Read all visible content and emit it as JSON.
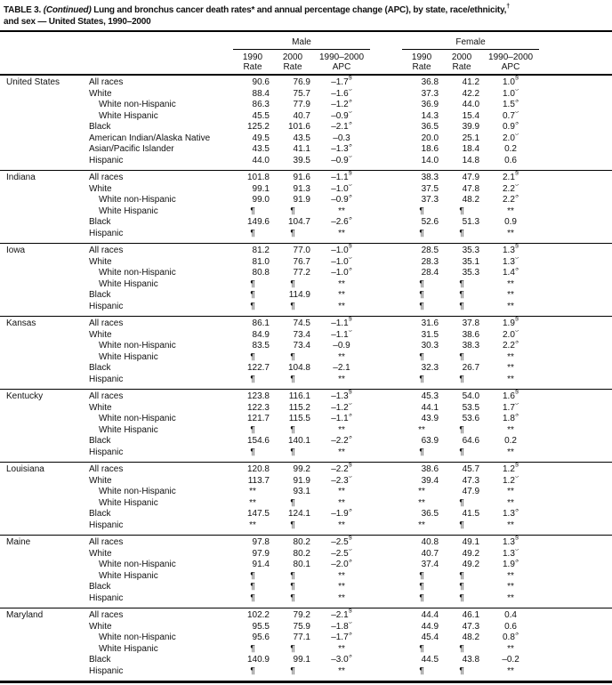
{
  "title": {
    "table_label": "TABLE 3.",
    "continued": "(Continued)",
    "main": "Lung and bronchus cancer death rates* and annual percentage change (APC), by state, race/ethnicity,",
    "dagger": "†",
    "line2": "and sex — United States, 1990–2000"
  },
  "header": {
    "male": "Male",
    "female": "Female",
    "columns": [
      {
        "year": "1990",
        "label": "Rate"
      },
      {
        "year": "2000",
        "label": "Rate"
      },
      {
        "year": "1990–2000",
        "label": "APC"
      }
    ]
  },
  "groups": [
    {
      "state": "United States",
      "rows": [
        {
          "label": "All races",
          "indent": 0,
          "cells": [
            "90.6",
            "76.9",
            "–1.7§",
            "36.8",
            "41.2",
            "1.0§"
          ]
        },
        {
          "label": "White",
          "indent": 0,
          "cells": [
            "88.4",
            "75.7",
            "–1.6§",
            "37.3",
            "42.2",
            "1.0§"
          ]
        },
        {
          "label": "White non-Hispanic",
          "indent": 1,
          "cells": [
            "86.3",
            "77.9",
            "–1.2§",
            "36.9",
            "44.0",
            "1.5§"
          ]
        },
        {
          "label": "White Hispanic",
          "indent": 1,
          "cells": [
            "45.5",
            "40.7",
            "–0.9§",
            "14.3",
            "15.4",
            "0.7§"
          ]
        },
        {
          "label": "Black",
          "indent": 0,
          "cells": [
            "125.2",
            "101.6",
            "–2.1§",
            "36.5",
            "39.9",
            "0.9§"
          ]
        },
        {
          "label": "American Indian/Alaska Native",
          "indent": 0,
          "cells": [
            "49.5",
            "43.5",
            "–0.3",
            "20.0",
            "25.1",
            "2.0§"
          ]
        },
        {
          "label": "Asian/Pacific Islander",
          "indent": 0,
          "cells": [
            "43.5",
            "41.1",
            "–1.3§",
            "18.6",
            "18.4",
            "0.2"
          ]
        },
        {
          "label": "Hispanic",
          "indent": 0,
          "cells": [
            "44.0",
            "39.5",
            "–0.9§",
            "14.0",
            "14.8",
            "0.6"
          ]
        }
      ]
    },
    {
      "state": "Indiana",
      "rows": [
        {
          "label": "All races",
          "indent": 0,
          "cells": [
            "101.8",
            "91.6",
            "–1.1§",
            "38.3",
            "47.9",
            "2.1§"
          ]
        },
        {
          "label": "White",
          "indent": 0,
          "cells": [
            "99.1",
            "91.3",
            "–1.0§",
            "37.5",
            "47.8",
            "2.2§"
          ]
        },
        {
          "label": "White non-Hispanic",
          "indent": 1,
          "cells": [
            "99.0",
            "91.9",
            "–0.9§",
            "37.3",
            "48.2",
            "2.2§"
          ]
        },
        {
          "label": "White Hispanic",
          "indent": 1,
          "cells": [
            "¶",
            "¶",
            "**",
            "¶",
            "¶",
            "**"
          ]
        },
        {
          "label": "Black",
          "indent": 0,
          "cells": [
            "149.6",
            "104.7",
            "–2.6§",
            "52.6",
            "51.3",
            "0.9"
          ]
        },
        {
          "label": "Hispanic",
          "indent": 0,
          "cells": [
            "¶",
            "¶",
            "**",
            "¶",
            "¶",
            "**"
          ]
        }
      ]
    },
    {
      "state": "Iowa",
      "rows": [
        {
          "label": "All races",
          "indent": 0,
          "cells": [
            "81.2",
            "77.0",
            "–1.0§",
            "28.5",
            "35.3",
            "1.3§"
          ]
        },
        {
          "label": "White",
          "indent": 0,
          "cells": [
            "81.0",
            "76.7",
            "–1.0§",
            "28.3",
            "35.1",
            "1.3§"
          ]
        },
        {
          "label": "White non-Hispanic",
          "indent": 1,
          "cells": [
            "80.8",
            "77.2",
            "–1.0§",
            "28.4",
            "35.3",
            "1.4§"
          ]
        },
        {
          "label": "White Hispanic",
          "indent": 1,
          "cells": [
            "¶",
            "¶",
            "**",
            "¶",
            "¶",
            "**"
          ]
        },
        {
          "label": "Black",
          "indent": 0,
          "cells": [
            "¶",
            "114.9",
            "**",
            "¶",
            "¶",
            "**"
          ]
        },
        {
          "label": "Hispanic",
          "indent": 0,
          "cells": [
            "¶",
            "¶",
            "**",
            "¶",
            "¶",
            "**"
          ]
        }
      ]
    },
    {
      "state": "Kansas",
      "rows": [
        {
          "label": "All races",
          "indent": 0,
          "cells": [
            "86.1",
            "74.5",
            "–1.1§",
            "31.6",
            "37.8",
            "1.9§"
          ]
        },
        {
          "label": "White",
          "indent": 0,
          "cells": [
            "84.9",
            "73.4",
            "–1.1§",
            "31.5",
            "38.6",
            "2.0§"
          ]
        },
        {
          "label": "White non-Hispanic",
          "indent": 1,
          "cells": [
            "83.5",
            "73.4",
            "–0.9",
            "30.3",
            "38.3",
            "2.2§"
          ]
        },
        {
          "label": "White Hispanic",
          "indent": 1,
          "cells": [
            "¶",
            "¶",
            "**",
            "¶",
            "¶",
            "**"
          ]
        },
        {
          "label": "Black",
          "indent": 0,
          "cells": [
            "122.7",
            "104.8",
            "–2.1",
            "32.3",
            "26.7",
            "**"
          ]
        },
        {
          "label": "Hispanic",
          "indent": 0,
          "cells": [
            "¶",
            "¶",
            "**",
            "¶",
            "¶",
            "**"
          ]
        }
      ]
    },
    {
      "state": "Kentucky",
      "rows": [
        {
          "label": "All races",
          "indent": 0,
          "cells": [
            "123.8",
            "116.1",
            "–1.3§",
            "45.3",
            "54.0",
            "1.6§"
          ]
        },
        {
          "label": "White",
          "indent": 0,
          "cells": [
            "122.3",
            "115.2",
            "–1.2§",
            "44.1",
            "53.5",
            "1.7§"
          ]
        },
        {
          "label": "White non-Hispanic",
          "indent": 1,
          "cells": [
            "121.7",
            "115.5",
            "–1.1§",
            "43.9",
            "53.6",
            "1.8§"
          ]
        },
        {
          "label": "White Hispanic",
          "indent": 1,
          "cells": [
            "¶",
            "¶",
            "**",
            "**",
            "¶",
            "**"
          ]
        },
        {
          "label": "Black",
          "indent": 0,
          "cells": [
            "154.6",
            "140.1",
            "–2.2§",
            "63.9",
            "64.6",
            "0.2"
          ]
        },
        {
          "label": "Hispanic",
          "indent": 0,
          "cells": [
            "¶",
            "¶",
            "**",
            "¶",
            "¶",
            "**"
          ]
        }
      ]
    },
    {
      "state": "Louisiana",
      "rows": [
        {
          "label": "All races",
          "indent": 0,
          "cells": [
            "120.8",
            "99.2",
            "–2.2§",
            "38.6",
            "45.7",
            "1.2§"
          ]
        },
        {
          "label": "White",
          "indent": 0,
          "cells": [
            "113.7",
            "91.9",
            "–2.3§",
            "39.4",
            "47.3",
            "1.2§"
          ]
        },
        {
          "label": "White non-Hispanic",
          "indent": 1,
          "cells": [
            "**",
            "93.1",
            "**",
            "**",
            "47.9",
            "**"
          ]
        },
        {
          "label": "White Hispanic",
          "indent": 1,
          "cells": [
            "**",
            "¶",
            "**",
            "**",
            "¶",
            "**"
          ]
        },
        {
          "label": "Black",
          "indent": 0,
          "cells": [
            "147.5",
            "124.1",
            "–1.9§",
            "36.5",
            "41.5",
            "1.3§"
          ]
        },
        {
          "label": "Hispanic",
          "indent": 0,
          "cells": [
            "**",
            "¶",
            "**",
            "**",
            "¶",
            "**"
          ]
        }
      ]
    },
    {
      "state": "Maine",
      "rows": [
        {
          "label": "All races",
          "indent": 0,
          "cells": [
            "97.8",
            "80.2",
            "–2.5§",
            "40.8",
            "49.1",
            "1.3§"
          ]
        },
        {
          "label": "White",
          "indent": 0,
          "cells": [
            "97.9",
            "80.2",
            "–2.5§",
            "40.7",
            "49.2",
            "1.3§"
          ]
        },
        {
          "label": "White non-Hispanic",
          "indent": 1,
          "cells": [
            "91.4",
            "80.1",
            "–2.0§",
            "37.4",
            "49.2",
            "1.9§"
          ]
        },
        {
          "label": "White Hispanic",
          "indent": 1,
          "cells": [
            "¶",
            "¶",
            "**",
            "¶",
            "¶",
            "**"
          ]
        },
        {
          "label": "Black",
          "indent": 0,
          "cells": [
            "¶",
            "¶",
            "**",
            "¶",
            "¶",
            "**"
          ]
        },
        {
          "label": "Hispanic",
          "indent": 0,
          "cells": [
            "¶",
            "¶",
            "**",
            "¶",
            "¶",
            "**"
          ]
        }
      ]
    },
    {
      "state": "Maryland",
      "rows": [
        {
          "label": "All races",
          "indent": 0,
          "cells": [
            "102.2",
            "79.2",
            "–2.1§",
            "44.4",
            "46.1",
            "0.4"
          ]
        },
        {
          "label": "White",
          "indent": 0,
          "cells": [
            "95.5",
            "75.9",
            "–1.8§",
            "44.9",
            "47.3",
            "0.6"
          ]
        },
        {
          "label": "White non-Hispanic",
          "indent": 1,
          "cells": [
            "95.6",
            "77.1",
            "–1.7§",
            "45.4",
            "48.2",
            "0.8§"
          ]
        },
        {
          "label": "White Hispanic",
          "indent": 1,
          "cells": [
            "¶",
            "¶",
            "**",
            "¶",
            "¶",
            "**"
          ]
        },
        {
          "label": "Black",
          "indent": 0,
          "cells": [
            "140.9",
            "99.1",
            "–3.0§",
            "44.5",
            "43.8",
            "–0.2"
          ]
        },
        {
          "label": "Hispanic",
          "indent": 0,
          "cells": [
            "¶",
            "¶",
            "**",
            "¶",
            "¶",
            "**"
          ]
        }
      ]
    }
  ]
}
